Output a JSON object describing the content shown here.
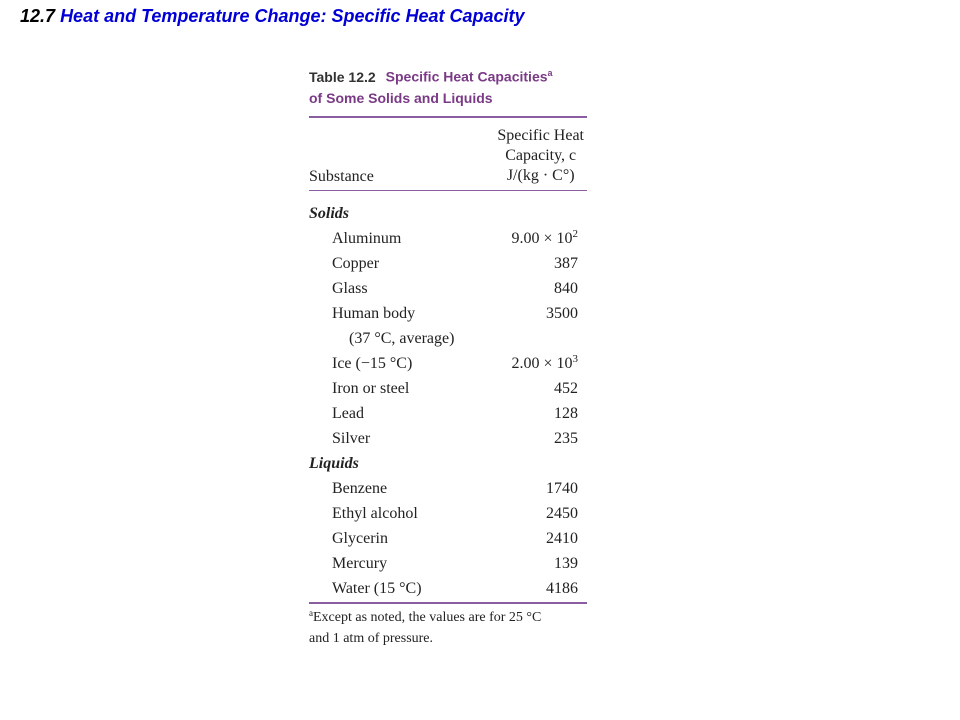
{
  "slide": {
    "number": "12.7",
    "title": "Heat and Temperature Change: Specific Heat Capacity"
  },
  "table": {
    "label": "Table 12.2",
    "caption_line1": "Specific Heat Capacities",
    "caption_sup": "a",
    "caption_line2": "of Some Solids and Liquids",
    "col_substance": "Substance",
    "col_value_line1": "Specific Heat",
    "col_value_line2": "Capacity, c",
    "col_value_line3": "J/(kg · C°)",
    "groups": [
      {
        "name": "Solids",
        "rows": [
          {
            "name": "Aluminum",
            "value": "9.00 × 10",
            "exp": "2"
          },
          {
            "name": "Copper",
            "value": "387"
          },
          {
            "name": "Glass",
            "value": "840"
          },
          {
            "name": "Human body",
            "value": "3500"
          },
          {
            "name": "(37 °C, average)",
            "value": ""
          },
          {
            "name": "Ice (−15 °C)",
            "value": "2.00 × 10",
            "exp": "3"
          },
          {
            "name": "Iron or steel",
            "value": "452"
          },
          {
            "name": "Lead",
            "value": "128"
          },
          {
            "name": "Silver",
            "value": "235"
          }
        ]
      },
      {
        "name": "Liquids",
        "rows": [
          {
            "name": "Benzene",
            "value": "1740"
          },
          {
            "name": "Ethyl alcohol",
            "value": "2450"
          },
          {
            "name": "Glycerin",
            "value": "2410"
          },
          {
            "name": "Mercury",
            "value": "139"
          },
          {
            "name": "Water (15 °C)",
            "value": "4186"
          }
        ]
      }
    ],
    "footnote_mark": "a",
    "footnote_line1": "Except as noted, the values are for 25 °C",
    "footnote_line2": "and 1 atm of pressure."
  }
}
